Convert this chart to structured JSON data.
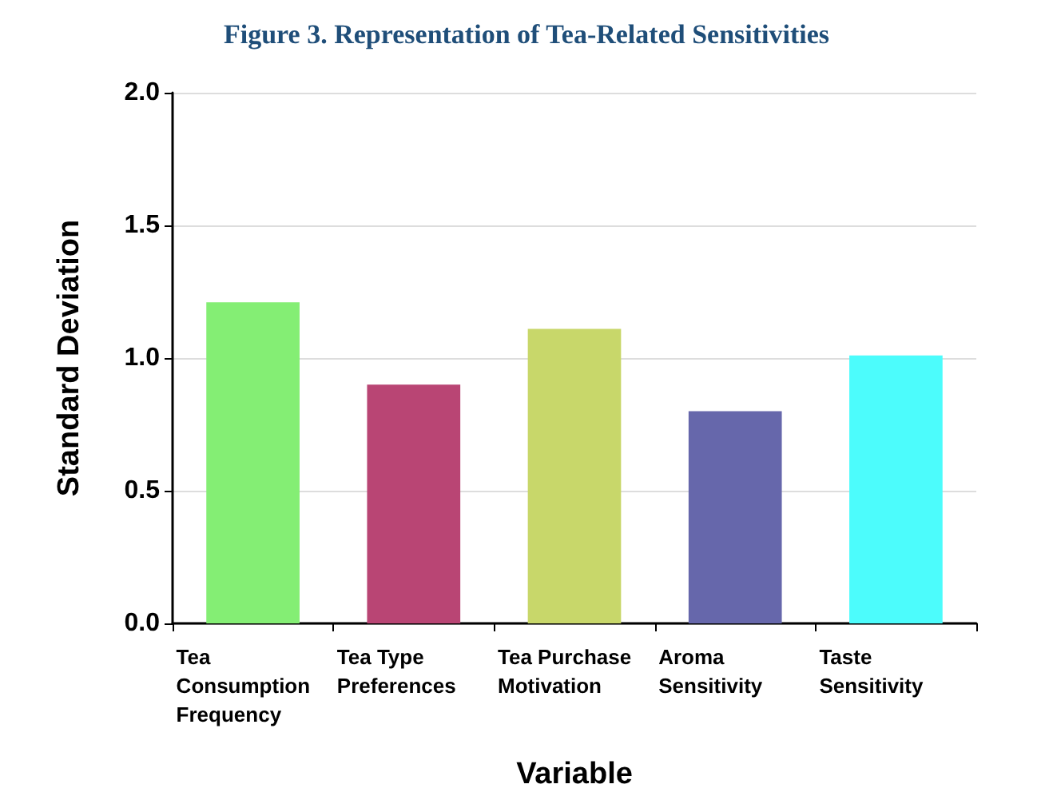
{
  "chart_data": {
    "type": "bar",
    "title": "Figure 3. Representation of Tea-Related Sensitivities",
    "xlabel": "Variable",
    "ylabel": "Standard Deviation",
    "categories": [
      "Tea Consumption Frequency",
      "Tea Type Preferences",
      "Tea Purchase Motivation",
      "Aroma Sensitivity",
      "Taste Sensitivity"
    ],
    "values": [
      1.21,
      0.9,
      1.11,
      0.8,
      1.01
    ],
    "colors": [
      "#84ee74",
      "#b94574",
      "#c8d76a",
      "#6667ab",
      "#4cfcfc"
    ],
    "ylim": [
      0,
      2
    ],
    "yticks": [
      {
        "value": 0,
        "label": "0.0"
      },
      0.5,
      {
        "value": 1,
        "label": "1.0"
      },
      1.5,
      {
        "value": 2,
        "label": "2.0"
      }
    ],
    "grid": "y"
  }
}
